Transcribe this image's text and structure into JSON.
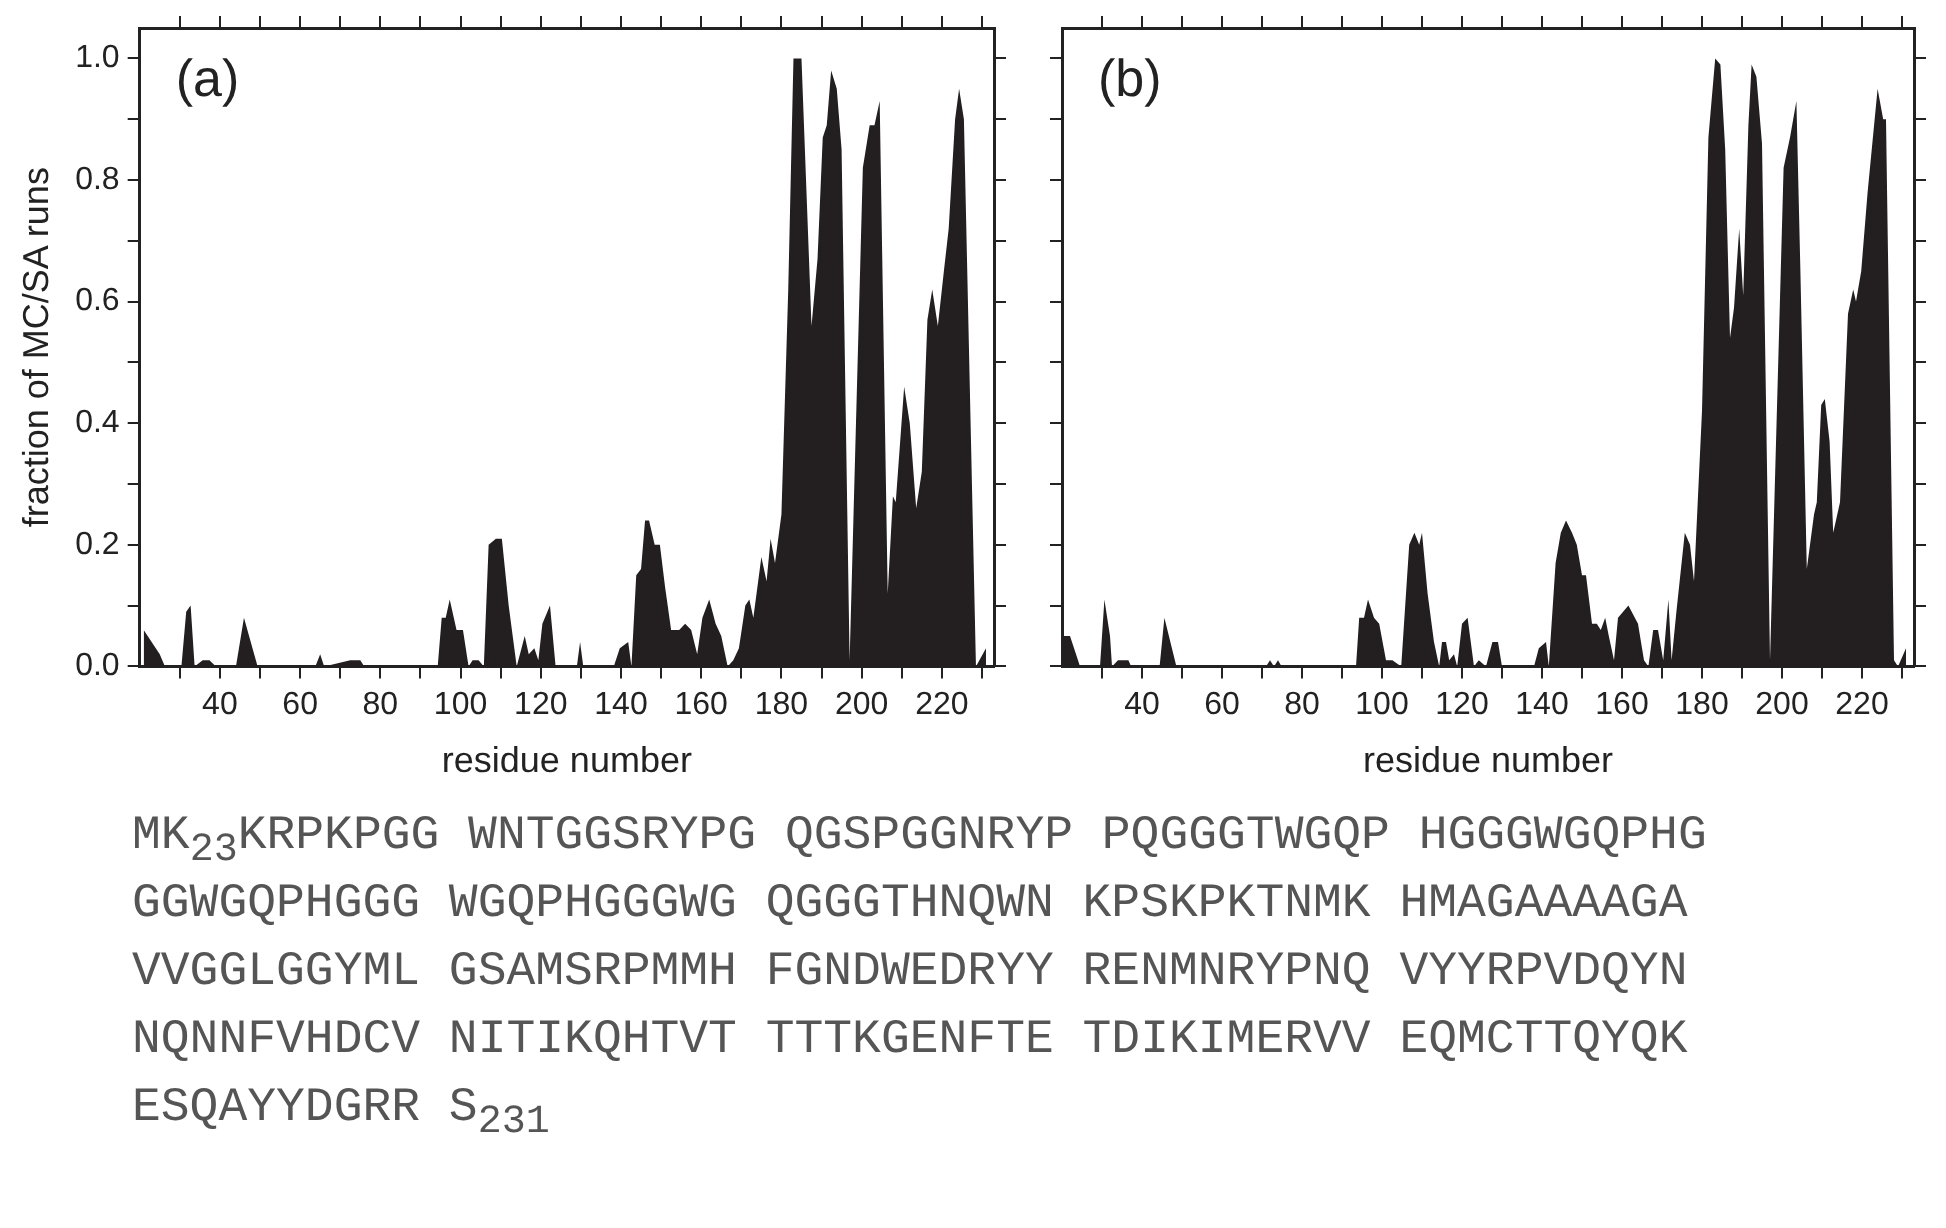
{
  "chart_data": [
    {
      "type": "area",
      "xlabel": "residue number",
      "ylabel": "fraction of MC/SA runs",
      "annotations": [
        "(a)"
      ],
      "legend": false,
      "grid": false,
      "xlim": [
        20,
        233
      ],
      "ylim": [
        0,
        1.05
      ],
      "xticks": [
        {
          "value": 30,
          "label": null
        },
        {
          "value": 40,
          "label": "40"
        },
        {
          "value": 50,
          "label": null
        },
        {
          "value": 60,
          "label": "60"
        },
        {
          "value": 70,
          "label": null
        },
        {
          "value": 80,
          "label": "80"
        },
        {
          "value": 90,
          "label": null
        },
        {
          "value": 100,
          "label": "100"
        },
        {
          "value": 110,
          "label": null
        },
        {
          "value": 120,
          "label": "120"
        },
        {
          "value": 130,
          "label": null
        },
        {
          "value": 140,
          "label": "140"
        },
        {
          "value": 150,
          "label": null
        },
        {
          "value": 160,
          "label": "160"
        },
        {
          "value": 170,
          "label": null
        },
        {
          "value": 180,
          "label": "180"
        },
        {
          "value": 190,
          "label": null
        },
        {
          "value": 200,
          "label": "200"
        },
        {
          "value": 210,
          "label": null
        },
        {
          "value": 220,
          "label": "220"
        },
        {
          "value": 230,
          "label": null
        }
      ],
      "yticks": [
        {
          "value": 0,
          "label": "0.0"
        },
        {
          "value": 0.1,
          "label": null
        },
        {
          "value": 0.2,
          "label": "0.2"
        },
        {
          "value": 0.3,
          "label": null
        },
        {
          "value": 0.4,
          "label": "0.4"
        },
        {
          "value": 0.5,
          "label": null
        },
        {
          "value": 0.6,
          "label": "0.6"
        },
        {
          "value": 0.7,
          "label": null
        },
        {
          "value": 0.8,
          "label": "0.8"
        },
        {
          "value": 0.9,
          "label": null
        },
        {
          "value": 1,
          "label": "1.0"
        }
      ],
      "series": [
        {
          "color": "#231f20",
          "x": [
            21,
            25,
            26.3,
            30.4,
            31.6,
            32.7,
            33.7,
            35.7,
            37.4,
            39,
            44,
            46,
            49.4,
            63.8,
            65,
            66,
            72.5,
            75,
            76,
            94.3,
            95.3,
            96.3,
            97.3,
            99,
            100.6,
            102,
            103,
            104.5,
            105.8,
            107,
            108.8,
            110.3,
            112,
            114,
            116,
            117,
            118.4,
            119.4,
            120.4,
            122.3,
            123.7,
            129,
            129.8,
            130.6,
            138.2,
            139.7,
            141.8,
            142.6,
            143.8,
            145,
            146,
            147,
            148.4,
            149.7,
            151,
            152.5,
            154.5,
            156,
            157.5,
            159,
            160.3,
            162,
            163.6,
            165,
            166.6,
            168,
            169.4,
            171,
            172,
            173,
            175,
            176.3,
            177.3,
            178.4,
            180,
            181.7,
            183,
            185,
            187.5,
            189,
            190.3,
            191.3,
            192.4,
            193.8,
            195,
            197,
            200.3,
            202,
            203.2,
            204.5,
            206.5,
            207.8,
            208.5,
            210.6,
            212,
            213.6,
            215,
            216.4,
            217.6,
            219,
            220.5,
            221.7,
            223.3,
            224.3,
            225.5,
            228.5,
            231
          ],
          "values": [
            0.06,
            0.02,
            0,
            0,
            0.09,
            0.1,
            0,
            0.01,
            0.01,
            0,
            0,
            0.08,
            0,
            0,
            0.02,
            0,
            0.01,
            0.01,
            0,
            0,
            0.08,
            0.08,
            0.11,
            0.06,
            0.06,
            0,
            0.01,
            0.01,
            0,
            0.2,
            0.21,
            0.21,
            0.1,
            0,
            0.05,
            0.02,
            0.03,
            0.01,
            0.07,
            0.1,
            0,
            0,
            0.04,
            0,
            0,
            0.03,
            0.04,
            0,
            0.15,
            0.16,
            0.24,
            0.24,
            0.2,
            0.2,
            0.13,
            0.06,
            0.06,
            0.07,
            0.06,
            0.02,
            0.08,
            0.11,
            0.07,
            0.05,
            0,
            0.01,
            0.03,
            0.1,
            0.11,
            0.08,
            0.18,
            0.14,
            0.21,
            0.17,
            0.25,
            0.62,
            1,
            1,
            0.56,
            0.67,
            0.87,
            0.89,
            0.98,
            0.95,
            0.85,
            0.01,
            0.82,
            0.89,
            0.89,
            0.93,
            0.12,
            0.28,
            0.27,
            0.46,
            0.4,
            0.26,
            0.32,
            0.57,
            0.62,
            0.56,
            0.65,
            0.72,
            0.9,
            0.95,
            0.9,
            0,
            0.03
          ]
        }
      ]
    },
    {
      "type": "area",
      "xlabel": "residue number",
      "annotations": [
        "(b)"
      ],
      "legend": false,
      "grid": false,
      "tick_labels": "x",
      "xlim": [
        20,
        233
      ],
      "ylim": [
        0,
        1.05
      ],
      "xticks": [
        {
          "value": 30,
          "label": null
        },
        {
          "value": 40,
          "label": "40"
        },
        {
          "value": 50,
          "label": null
        },
        {
          "value": 60,
          "label": "60"
        },
        {
          "value": 70,
          "label": null
        },
        {
          "value": 80,
          "label": "80"
        },
        {
          "value": 90,
          "label": null
        },
        {
          "value": 100,
          "label": "100"
        },
        {
          "value": 110,
          "label": null
        },
        {
          "value": 120,
          "label": "120"
        },
        {
          "value": 130,
          "label": null
        },
        {
          "value": 140,
          "label": "140"
        },
        {
          "value": 150,
          "label": null
        },
        {
          "value": 160,
          "label": "160"
        },
        {
          "value": 170,
          "label": null
        },
        {
          "value": 180,
          "label": "180"
        },
        {
          "value": 190,
          "label": null
        },
        {
          "value": 200,
          "label": "200"
        },
        {
          "value": 210,
          "label": null
        },
        {
          "value": 220,
          "label": "220"
        },
        {
          "value": 230,
          "label": null
        }
      ],
      "yticks": [
        {
          "value": 0,
          "label": null
        },
        {
          "value": 0.1,
          "label": null
        },
        {
          "value": 0.2,
          "label": null
        },
        {
          "value": 0.3,
          "label": null
        },
        {
          "value": 0.4,
          "label": null
        },
        {
          "value": 0.5,
          "label": null
        },
        {
          "value": 0.6,
          "label": null
        },
        {
          "value": 0.7,
          "label": null
        },
        {
          "value": 0.8,
          "label": null
        },
        {
          "value": 0.9,
          "label": null
        },
        {
          "value": 1,
          "label": null
        }
      ],
      "series": [
        {
          "color": "#231f20",
          "x": [
            20.3,
            22,
            24,
            24.5,
            29.5,
            30.6,
            32,
            32.5,
            34,
            36.6,
            37.3,
            44.4,
            45.6,
            48.6,
            71,
            72,
            73,
            74,
            74.9,
            93.5,
            94.3,
            95.5,
            96.5,
            98,
            99.3,
            101,
            102.6,
            104.8,
            106.8,
            108.1,
            109.3,
            110,
            111.4,
            113,
            114.3,
            115,
            116,
            116.8,
            118,
            118.8,
            120,
            121.4,
            123,
            124.2,
            126,
            127.6,
            129,
            130,
            138,
            139.2,
            141,
            141.7,
            143.4,
            144.7,
            146,
            147.5,
            148.7,
            150,
            151,
            152.5,
            153.7,
            154.7,
            155.8,
            156.7,
            158,
            159,
            161.6,
            164,
            165.5,
            166.6,
            167.8,
            169,
            170.3,
            171.6,
            172.4,
            173.6,
            175.7,
            177,
            178,
            180,
            181.6,
            183.3,
            184.6,
            185.8,
            187,
            188,
            189.3,
            190.3,
            191.6,
            192.4,
            193.6,
            195,
            197,
            200.4,
            202,
            203.6,
            204.6,
            206.2,
            208,
            208.7,
            209.8,
            210.7,
            211.9,
            212.8,
            214.5,
            216.5,
            217.8,
            218.5,
            219.8,
            221.4,
            223.9,
            225.3,
            226,
            228,
            229,
            231
          ],
          "values": [
            0.05,
            0.05,
            0.01,
            0,
            0,
            0.11,
            0.05,
            0,
            0.01,
            0.01,
            0,
            0,
            0.08,
            0,
            0,
            0.01,
            0,
            0.01,
            0,
            0,
            0.08,
            0.08,
            0.11,
            0.08,
            0.07,
            0.01,
            0.01,
            0,
            0.2,
            0.22,
            0.2,
            0.22,
            0.12,
            0.04,
            0,
            0.04,
            0.04,
            0.01,
            0.02,
            0,
            0.07,
            0.08,
            0,
            0.01,
            0,
            0.04,
            0.04,
            0,
            0,
            0.03,
            0.04,
            0,
            0.17,
            0.22,
            0.24,
            0.22,
            0.2,
            0.15,
            0.15,
            0.07,
            0.07,
            0.06,
            0.08,
            0.05,
            0.01,
            0.08,
            0.1,
            0.07,
            0.01,
            0,
            0.06,
            0.06,
            0.01,
            0.11,
            0.01,
            0.09,
            0.22,
            0.2,
            0.14,
            0.42,
            0.87,
            1,
            0.99,
            0.85,
            0.54,
            0.59,
            0.72,
            0.61,
            0.89,
            0.99,
            0.97,
            0.86,
            0.01,
            0.82,
            0.87,
            0.93,
            0.65,
            0.16,
            0.25,
            0.27,
            0.43,
            0.44,
            0.37,
            0.22,
            0.27,
            0.58,
            0.62,
            0.6,
            0.65,
            0.78,
            0.95,
            0.9,
            0.9,
            0.01,
            0,
            0.03
          ]
        }
      ]
    },
    {
      "type": "other",
      "annotations": [
        "MK$_{23}$KRPKPGG WNTGGSRYPG QGSPGGNRYP PQGGGTWGQP HGGGWGQPHG",
        "GGWGQPHGGG WGQPHGGGWG QGGGTHNQWN KPSKPKTNMK HMAGAAAAGA",
        "VVGGLGGYML GSAMSRPMMH FGNDWEDRYY RENMNRYPNQ VYYRPVDQYN",
        "NQNNFVHDCV NITIKQHTVT TTTKGENFTE TDIKIMERVV EQMCTTQYQK",
        "ESQAYYDGRR S$_{231}$"
      ]
    }
  ]
}
